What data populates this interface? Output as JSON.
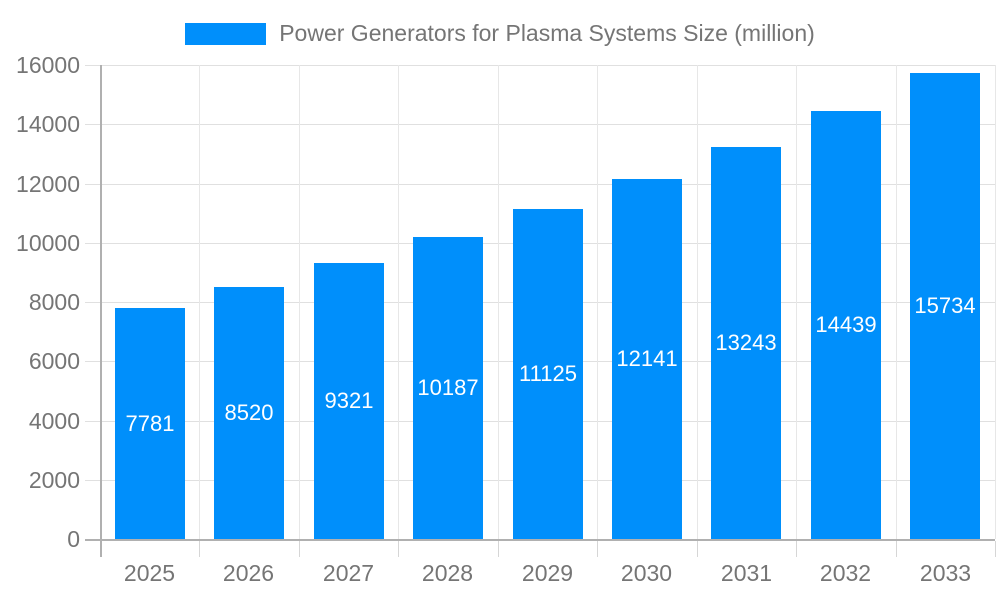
{
  "legend": {
    "label": "Power Generators for Plasma Systems Size (million)"
  },
  "chart_data": {
    "type": "bar",
    "title": "Power Generators for Plasma Systems Size (million)",
    "categories": [
      "2025",
      "2026",
      "2027",
      "2028",
      "2029",
      "2030",
      "2031",
      "2032",
      "2033"
    ],
    "series": [
      {
        "name": "Power Generators for Plasma Systems Size (million)",
        "values": [
          7781,
          8520,
          9321,
          10187,
          11125,
          12141,
          13243,
          14439,
          15734
        ]
      }
    ],
    "data_labels": [
      "7781",
      "8520",
      "9321",
      "10187",
      "11125",
      "12141",
      "13243",
      "14439",
      "15734"
    ],
    "xlabel": "",
    "ylabel": "",
    "ylim": [
      0,
      16000
    ],
    "yticks": [
      0,
      2000,
      4000,
      6000,
      8000,
      10000,
      12000,
      14000,
      16000
    ],
    "grid": true,
    "legend_position": "top",
    "colors": {
      "bar": "#008FFB",
      "bar_label": "#ffffff",
      "axis_text": "#757575",
      "grid_h": "#e0e0e0",
      "grid_v": "#e7e7e7",
      "axis_line": "#b0b0b0"
    }
  }
}
